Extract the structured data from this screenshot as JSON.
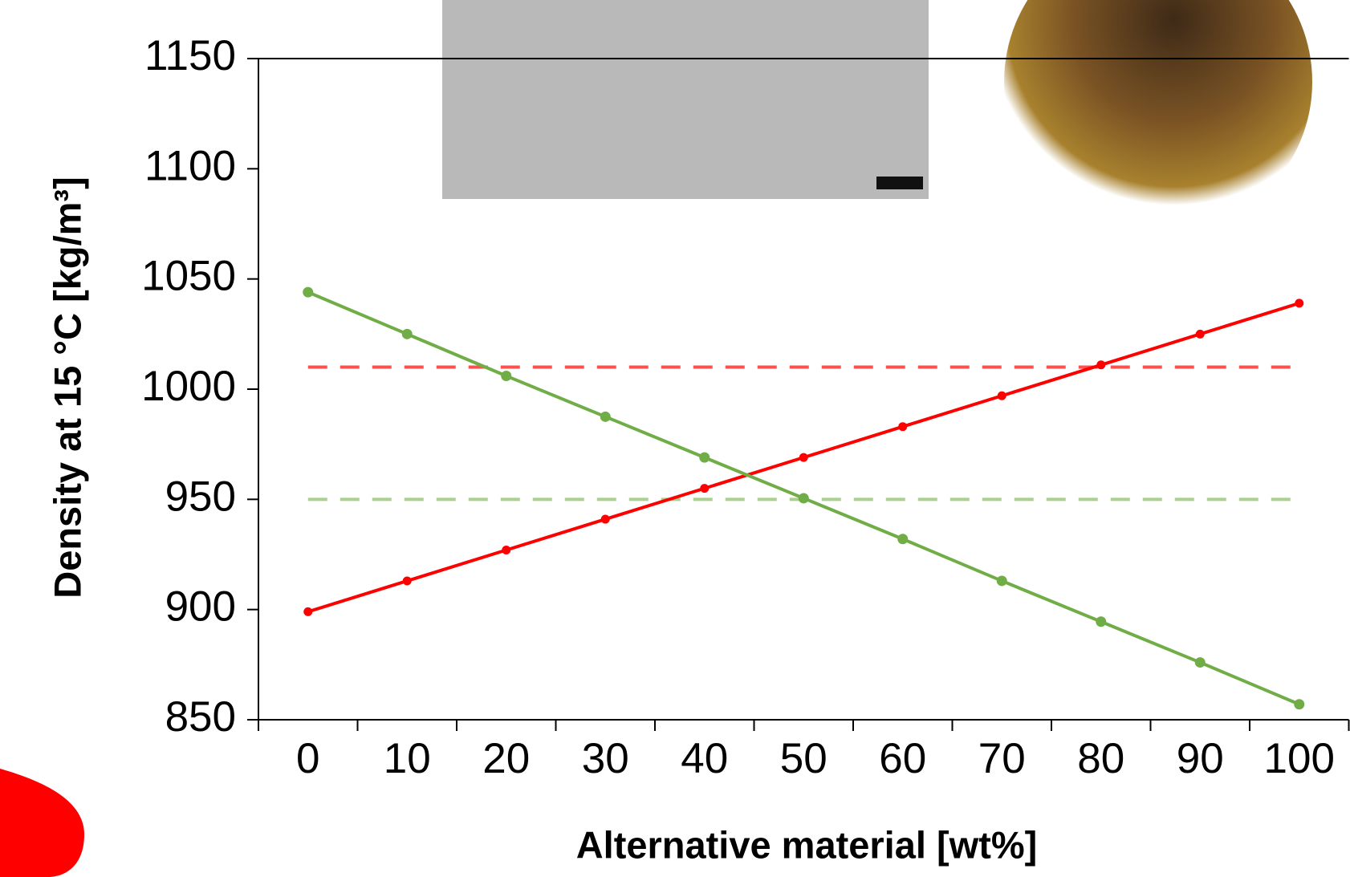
{
  "chart_data": {
    "type": "line",
    "xlabel": "Alternative material [wt%]",
    "ylabel": "Density at 15 °C [kg/m³]",
    "categories": [
      "0",
      "10",
      "20",
      "30",
      "40",
      "50",
      "60",
      "70",
      "80",
      "90",
      "100"
    ],
    "series": [
      {
        "color": "#ff0000",
        "values": [
          899,
          913,
          927,
          941,
          955,
          969,
          983,
          997,
          1011,
          1025,
          1039
        ]
      },
      {
        "color": "#70ad47",
        "values": [
          1044,
          1025,
          1006,
          987.5,
          969,
          950.5,
          932,
          913,
          894.5,
          876,
          857
        ]
      }
    ],
    "reference_lines": [
      {
        "value": 1010,
        "color": "#ff5050",
        "style": "dashed"
      },
      {
        "value": 950,
        "color": "#a9d18e",
        "style": "dashed"
      }
    ],
    "ylim": [
      850,
      1150
    ],
    "yticks": [
      850,
      900,
      950,
      1000,
      1050,
      1100,
      1150
    ],
    "grid": false
  }
}
